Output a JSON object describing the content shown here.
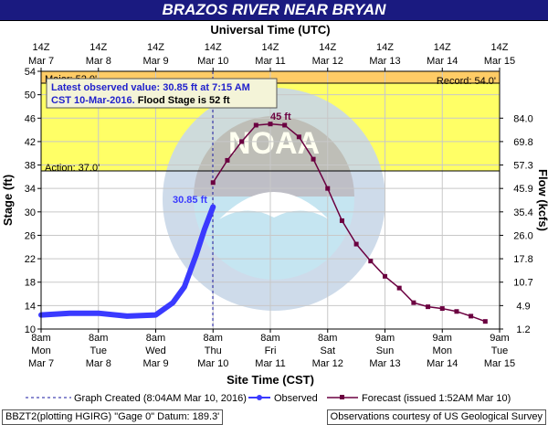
{
  "header": {
    "title": "BRAZOS RIVER NEAR BRYAN"
  },
  "axes": {
    "top_title": "Universal Time (UTC)",
    "bottom_title": "Site Time (CST)",
    "left_title": "Stage (ft)",
    "right_title": "Flow (kcfs)",
    "top_ticks": [
      [
        "14Z",
        "Mar 7"
      ],
      [
        "14Z",
        "Mar 8"
      ],
      [
        "14Z",
        "Mar 9"
      ],
      [
        "14Z",
        "Mar 10"
      ],
      [
        "14Z",
        "Mar 11"
      ],
      [
        "14Z",
        "Mar 12"
      ],
      [
        "14Z",
        "Mar 13"
      ],
      [
        "14Z",
        "Mar 14"
      ],
      [
        "14Z",
        "Mar 15"
      ]
    ],
    "bottom_ticks": [
      [
        "8am",
        "Mon",
        "Mar 7"
      ],
      [
        "8am",
        "Tue",
        "Mar 8"
      ],
      [
        "8am",
        "Wed",
        "Mar 9"
      ],
      [
        "8am",
        "Thu",
        "Mar 10"
      ],
      [
        "8am",
        "Fri",
        "Mar 11"
      ],
      [
        "8am",
        "Sat",
        "Mar 12"
      ],
      [
        "9am",
        "Sun",
        "Mar 13"
      ],
      [
        "9am",
        "Mon",
        "Mar 14"
      ],
      [
        "9am",
        "Tue",
        "Mar 15"
      ]
    ],
    "left_ticks": [
      10,
      14,
      18,
      22,
      26,
      30,
      34,
      38,
      42,
      46,
      50,
      54
    ],
    "right_ticks": [
      [
        "1.2",
        10
      ],
      [
        "4.9",
        14
      ],
      [
        "10.7",
        18
      ],
      [
        "17.8",
        22
      ],
      [
        "26.0",
        26
      ],
      [
        "35.4",
        30
      ],
      [
        "45.9",
        34
      ],
      [
        "57.3",
        38
      ],
      [
        "69.8",
        42
      ],
      [
        "84.0",
        46
      ]
    ]
  },
  "zones": {
    "major_label": "Major:  52.0'",
    "record_label": "Record:  54.0'",
    "action_label": "Action:  37.0'"
  },
  "callout": {
    "line1": "Latest observed value: 30.85 ft at 7:15 AM",
    "line2a": "CST 10-Mar-2016.",
    "line2b": " Flood Stage is 52 ft"
  },
  "annotations": {
    "observed_value": "30.85 ft",
    "forecast_peak": "45 ft"
  },
  "legend": {
    "created": "Graph Created (8:04AM Mar 10, 2016)",
    "observed": "Observed",
    "forecast": "Forecast (issued 1:52AM Mar 10)"
  },
  "footer": {
    "left": "BBZT2(plotting HGIRG) \"Gage 0\" Datum: 189.3'",
    "right": "Observations courtesy of US Geological Survey"
  },
  "colors": {
    "observed": "#3a3aff",
    "forecast": "#6b0040",
    "flood_zone": "#ffff66",
    "record_zone": "#ffcc66"
  },
  "chart_data": {
    "type": "line",
    "title": "BRAZOS RIVER NEAR BRYAN",
    "xlabel": "Site Time (CST)",
    "ylabel": "Stage (ft)",
    "y2label": "Flow (kcfs)",
    "ylim": [
      10,
      54
    ],
    "xlim": [
      "Mar 7 8am",
      "Mar 15 9am"
    ],
    "thresholds": {
      "action": 37.0,
      "flood": 52.0,
      "record": 54.0
    },
    "grid": true,
    "series": [
      {
        "name": "Observed",
        "x_days": [
          0.0,
          0.5,
          1.0,
          1.5,
          2.0,
          2.3,
          2.5,
          2.7,
          2.85,
          3.0
        ],
        "values": [
          12.4,
          12.7,
          12.7,
          12.2,
          12.4,
          14.5,
          17.2,
          22.5,
          27.0,
          30.85
        ]
      },
      {
        "name": "Forecast",
        "x_days": [
          3.0,
          3.25,
          3.5,
          3.75,
          4.0,
          4.25,
          4.5,
          4.75,
          5.0,
          5.25,
          5.5,
          5.75,
          6.0,
          6.25,
          6.5,
          6.75,
          7.0,
          7.25,
          7.5,
          7.75
        ],
        "values": [
          35.0,
          38.8,
          42.0,
          44.8,
          45.0,
          44.8,
          42.8,
          39.0,
          34.0,
          28.5,
          24.5,
          21.6,
          19.0,
          17.0,
          14.5,
          13.8,
          13.5,
          13.0,
          12.2,
          11.3
        ]
      }
    ]
  }
}
